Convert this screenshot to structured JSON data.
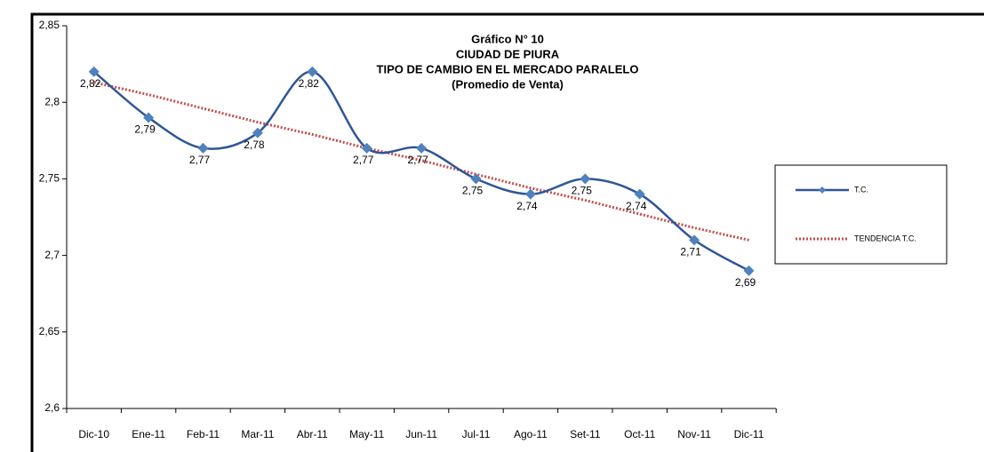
{
  "chart_data": {
    "type": "line",
    "title": [
      "Gráfico N° 10",
      "CIUDAD DE PIURA",
      "TIPO DE CAMBIO EN EL MERCADO PARALELO",
      "(Promedio de Venta)"
    ],
    "categories": [
      "Dic-10",
      "Ene-11",
      "Feb-11",
      "Mar-11",
      "Abr-11",
      "May-11",
      "Jun-11",
      "Jul-11",
      "Ago-11",
      "Set-11",
      "Oct-11",
      "Nov-11",
      "Dic-11"
    ],
    "series": [
      {
        "name": "T.C.",
        "color": "#2f5597",
        "values": [
          2.82,
          2.79,
          2.77,
          2.78,
          2.82,
          2.77,
          2.77,
          2.75,
          2.74,
          2.75,
          2.74,
          2.71,
          2.69
        ],
        "value_labels": [
          "2,82",
          "2,79",
          "2,77",
          "2,78",
          "2,82",
          "2,77",
          "2,77",
          "2,75",
          "2,74",
          "2,75",
          "2,74",
          "2,71",
          "2,69"
        ],
        "smooth": true
      },
      {
        "name": "TENDENCIA T.C.",
        "color": "#c0504d",
        "dashed": true,
        "values": [
          2.813,
          2.805,
          2.796,
          2.787,
          2.779,
          2.77,
          2.762,
          2.753,
          2.744,
          2.736,
          2.727,
          2.718,
          2.71
        ]
      }
    ],
    "ylim": [
      2.6,
      2.85
    ],
    "yticks": [
      {
        "value": 2.6,
        "label": "2,6"
      },
      {
        "value": 2.65,
        "label": "2,65"
      },
      {
        "value": 2.7,
        "label": "2,7"
      },
      {
        "value": 2.75,
        "label": "2,75"
      },
      {
        "value": 2.8,
        "label": "2,8"
      },
      {
        "value": 2.85,
        "label": "2,85"
      }
    ],
    "legend": "right"
  }
}
